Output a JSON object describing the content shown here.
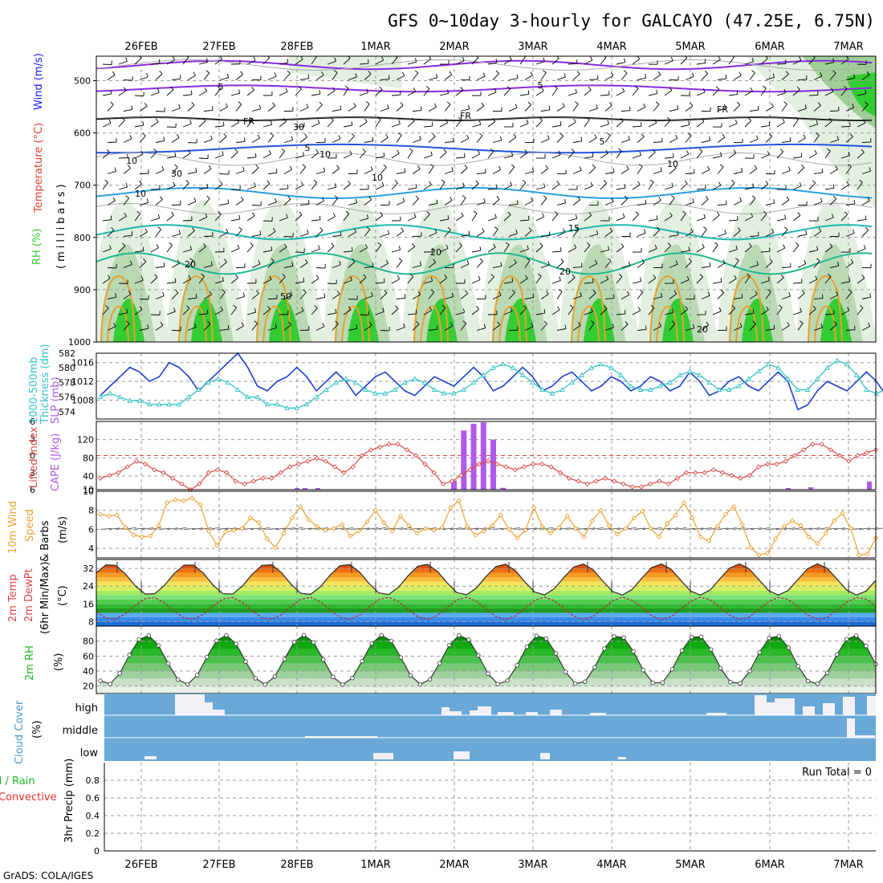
{
  "title": "GFS 0~10day 3-hourly for GALCAYO (47.25E, 6.75N)",
  "footer": "GrADS: COLA/IGES",
  "dates": [
    "26FEB",
    "27FEB",
    "28FEB",
    "1MAR",
    "2MAR",
    "3MAR",
    "4MAR",
    "5MAR",
    "6MAR",
    "7MAR"
  ],
  "panel_labels": {
    "upper_rh": "RH (%)",
    "upper_temp": "Temperature (°C)",
    "upper_wind": "Wind (m/s)",
    "upper_axis": "(millibars)",
    "slp": "SLP (mb)",
    "thickness": "Thickness (dm)",
    "thickness2": "1000-500mb",
    "cape": "CAPE (J/kg)",
    "lifted": "Lifted Index",
    "wind10_a": "Speed",
    "wind10_b": "& Barbs",
    "wind10_c": "10m Wind",
    "wind10_unit": "(m/s)",
    "temp_a": "2m Temp",
    "temp_b": "2m DewPt",
    "temp_c": "(6hr Min/Max)",
    "temp_unit": "(°C)",
    "rh2m": "2m RH",
    "rh2m_unit": "(%)",
    "cloud": "Cloud Cover",
    "cloud_unit": "(%)",
    "precip_a": "3hr Precip (mm)",
    "precip_b": "Total / Rain",
    "precip_c": "Convective",
    "run_total": "Run Total = 0"
  },
  "colors": {
    "rh": "#33cc33",
    "temp_label": "#e8402a",
    "wind_label": "#1a1aff",
    "slp": "#1a3fd6",
    "thickness": "#33c4c9",
    "cape": "#b05ae8",
    "lifted": "#e04848",
    "wind10": "#f0a030",
    "rh2m": "#22b822",
    "cloud": "#6aa8d8",
    "cloud_label": "#4a98d0",
    "precip_total": "#22bb22",
    "precip_conv": "#e83030"
  },
  "chart_data": [
    {
      "type": "heatmap",
      "panel": "upper-air time-height",
      "ylabel": "millibars",
      "ylim": [
        1000,
        450
      ],
      "yticks": [
        500,
        600,
        700,
        800,
        900,
        1000
      ],
      "isotherm_labels": [
        "5",
        "FR",
        "10",
        "15",
        "20",
        "5",
        "FR",
        "5",
        "10",
        "20",
        "30",
        "50"
      ],
      "x_categories": [
        "26FEB",
        "27FEB",
        "28FEB",
        "1MAR",
        "2MAR",
        "3MAR",
        "4MAR",
        "5MAR",
        "6MAR",
        "7MAR"
      ]
    },
    {
      "type": "line",
      "panel": "SLP & thickness",
      "series": [
        {
          "name": "SLP (mb)",
          "axis": "right",
          "values": [
            1009,
            1011,
            1013,
            1015,
            1014,
            1012,
            1013,
            1016,
            1015,
            1013,
            1010,
            1012,
            1014,
            1016,
            1018,
            1015,
            1011,
            1010,
            1012,
            1013,
            1015,
            1013,
            1010,
            1012,
            1014,
            1012,
            1009,
            1011,
            1013,
            1014,
            1012,
            1010,
            1009,
            1011,
            1013,
            1012,
            1011,
            1013,
            1015,
            1013,
            1010,
            1011,
            1013,
            1015,
            1013,
            1010,
            1011,
            1013,
            1014,
            1012,
            1010,
            1011,
            1013,
            1012,
            1010,
            1011,
            1013,
            1012,
            1010,
            1011,
            1014,
            1012,
            1009,
            1010,
            1012,
            1013,
            1011,
            1010,
            1012,
            1014,
            1012,
            1006,
            1007,
            1010,
            1012,
            1011,
            1010,
            1012,
            1014,
            1012,
            1009,
            1010,
            1012,
            1013,
            1011,
            1009,
            1010,
            1012,
            1013,
            1011,
            1008,
            1010,
            1012,
            1013
          ]
        },
        {
          "name": "Thickness (dm)",
          "axis": "left",
          "values": [
            576,
            576.5,
            576,
            575.5,
            575.5,
            575,
            575,
            575,
            575,
            576,
            577,
            578,
            578.5,
            578,
            577,
            576,
            576,
            575,
            575,
            574.5,
            574.5,
            575,
            576,
            577,
            578,
            578.5,
            578,
            577,
            576.5,
            576.5,
            577,
            578,
            578.5,
            578,
            577,
            576.5,
            576.5,
            577,
            578,
            579,
            580,
            580.5,
            580,
            579,
            578,
            577,
            576.5,
            577,
            578,
            579,
            580,
            580.5,
            580,
            579,
            577.5,
            577,
            577,
            577.5,
            578,
            579,
            579.5,
            579,
            578,
            577,
            577,
            577.5,
            578.5,
            579.5,
            580.5,
            580,
            578.5,
            577,
            577,
            578.5,
            580,
            581,
            580.5,
            579,
            577,
            576.5,
            577,
            578,
            579,
            580,
            580,
            579,
            577.5,
            577,
            577,
            577.5,
            578,
            579,
            579.5,
            579
          ]
        }
      ],
      "ylim_left": [
        573,
        582
      ],
      "ylim_right": [
        1004,
        1018
      ]
    },
    {
      "type": "bar",
      "panel": "CAPE & Lifted Index",
      "series": [
        {
          "name": "CAPE (J/kg)",
          "axis": "right",
          "values": [
            0,
            0,
            0,
            0,
            0,
            0,
            0,
            0,
            0,
            0,
            0,
            0,
            0,
            0,
            0,
            0,
            0,
            0,
            0,
            0,
            0,
            0,
            0,
            0,
            0,
            0,
            0,
            0,
            0,
            0,
            0,
            0,
            0,
            0,
            0,
            0,
            30,
            140,
            155,
            158,
            120,
            14,
            0,
            0,
            0,
            0,
            0,
            0,
            0,
            0,
            0,
            0,
            0,
            0,
            0,
            0,
            0,
            0,
            0,
            0,
            0,
            0,
            0,
            0,
            0,
            0,
            0,
            0,
            0,
            0,
            0,
            0,
            0,
            0,
            0,
            0,
            0,
            0,
            0,
            0,
            0,
            0,
            0,
            0,
            0,
            0,
            0,
            0,
            0,
            0,
            0,
            0,
            0,
            0,
            0,
            0,
            0,
            16
          ]
        },
        {
          "name": "Lifted Index",
          "axis": "left",
          "values": [
            4,
            3.5,
            3,
            2,
            1,
            1.5,
            2.5,
            3,
            4,
            5,
            6,
            5,
            3,
            2.5,
            3,
            4.5,
            5,
            4.5,
            4,
            4,
            3,
            2,
            1.5,
            1,
            0.5,
            1,
            2,
            3,
            2,
            0,
            -1,
            -1.5,
            -2,
            -2,
            -1,
            0,
            1.5,
            3,
            5,
            4.5,
            3.5,
            2.5,
            1.5,
            1,
            1.5,
            2,
            2.5,
            2,
            1.5,
            1.5,
            2,
            3,
            4,
            4.5,
            5,
            4.5,
            4,
            4.5,
            5,
            5.5,
            5.5,
            5,
            4.5,
            5,
            4,
            3,
            3,
            3,
            2.5,
            3,
            3.5,
            4,
            3.5,
            2,
            1.5,
            1.5,
            1,
            0,
            -1,
            -2,
            -2,
            -1,
            0,
            1,
            0,
            -0.5,
            -1
          ]
        }
      ],
      "ylim_cape": [
        10,
        160
      ],
      "ylim_li": [
        6,
        -6
      ]
    },
    {
      "type": "line",
      "panel": "10m Wind Speed",
      "ylabel": "(m/s)",
      "ylim": [
        3,
        10
      ],
      "values": [
        7.6,
        7.4,
        7.5,
        6.2,
        5.4,
        5.2,
        5.3,
        6.4,
        8.8,
        9.1,
        9.0,
        9.3,
        8.6,
        5.8,
        4.3,
        5.7,
        5.9,
        6.1,
        7.2,
        6.7,
        5.0,
        4.1,
        5.6,
        7.2,
        8.4,
        7.0,
        6.3,
        5.9,
        6.1,
        6.5,
        5.3,
        5.8,
        6.8,
        8.0,
        6.7,
        5.8,
        7.4,
        6.4,
        5.6,
        6.1,
        5.9,
        6.2,
        8.3,
        9.0,
        6.3,
        5.4,
        5.8,
        6.4,
        7.5,
        6.0,
        5.1,
        5.9,
        8.3,
        6.3,
        5.6,
        6.2,
        7.4,
        6.1,
        5.2,
        6.9,
        8.0,
        6.4,
        5.5,
        6.1,
        7.2,
        7.9,
        6.1,
        5.2,
        6.6,
        7.5,
        8.8,
        7.2,
        5.2,
        4.8,
        6.3,
        7.6,
        8.4,
        6.5,
        4.1,
        3.3,
        3.5,
        5.0,
        6.3,
        6.9,
        6.4,
        5.2,
        4.5,
        5.6,
        6.9,
        7.7,
        6.1,
        3.3,
        3.4,
        5.1
      ]
    },
    {
      "type": "area",
      "panel": "2m Temp / DewPt",
      "ylabel": "(°C)",
      "ylim": [
        6,
        36
      ],
      "yticks": [
        8,
        16,
        24,
        32
      ],
      "temp_daily_max": 34,
      "temp_daily_min": 20,
      "dewpt_range": [
        9,
        19
      ]
    },
    {
      "type": "area",
      "panel": "2m RH",
      "ylabel": "(%)",
      "ylim": [
        10,
        100
      ],
      "yticks": [
        20,
        40,
        60,
        80
      ],
      "daily_max": 90,
      "daily_min": 20
    },
    {
      "type": "bar",
      "panel": "Cloud Cover",
      "categories": [
        "high",
        "middle",
        "low"
      ]
    },
    {
      "type": "line",
      "panel": "3hr Precip",
      "ylabel": "3hr Precip (mm)",
      "ylim": [
        0,
        1
      ],
      "yticks": [
        0,
        0.2,
        0.4,
        0.6,
        0.8
      ],
      "run_total": 0
    }
  ]
}
